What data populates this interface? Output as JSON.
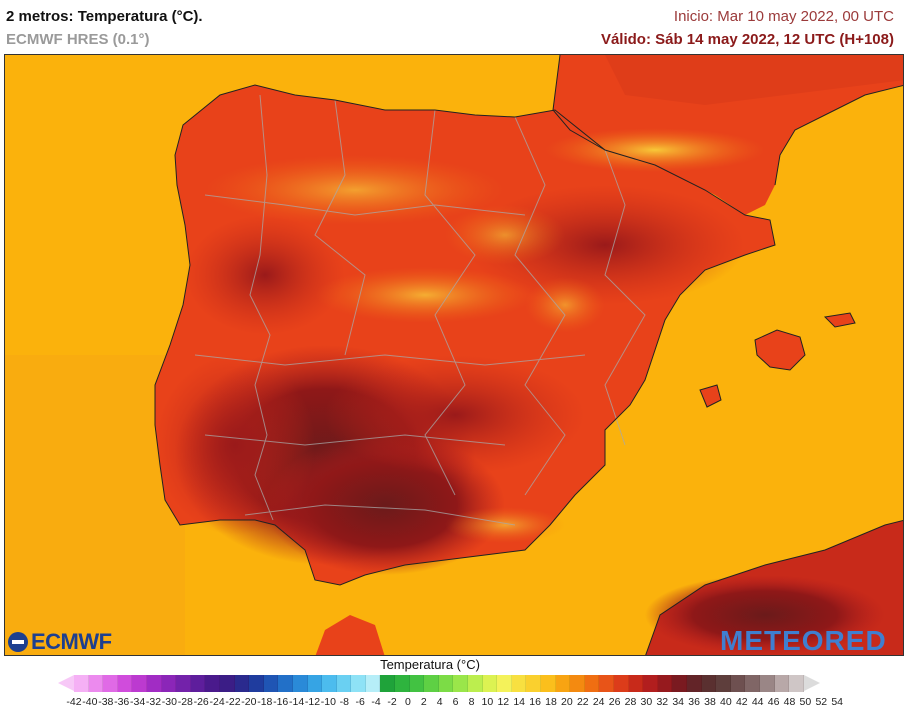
{
  "header": {
    "title": "2 metros: Temperatura (°C).",
    "model": "ECMWF HRES (0.1°)",
    "init": "Inicio: Mar 10 may 2022, 00 UTC",
    "valid": "Válido: Sáb 14 may 2022, 12 UTC (H+108)"
  },
  "logos": {
    "left": "ECMWF",
    "right": "METEORED"
  },
  "legend": {
    "title": "Temperatura (°C)",
    "ticks": [
      "-42",
      "-40",
      "-38",
      "-36",
      "-34",
      "-32",
      "-30",
      "-28",
      "-26",
      "-24",
      "-22",
      "-20",
      "-18",
      "-16",
      "-14",
      "-12",
      "-10",
      "-8",
      "-6",
      "-4",
      "-2",
      "0",
      "2",
      "4",
      "6",
      "8",
      "10",
      "12",
      "14",
      "16",
      "18",
      "20",
      "22",
      "24",
      "26",
      "28",
      "30",
      "32",
      "34",
      "36",
      "38",
      "40",
      "42",
      "44",
      "46",
      "48",
      "50",
      "52",
      "54"
    ],
    "colors": [
      "#f5b0f5",
      "#ec8aee",
      "#e06ae6",
      "#d04cdc",
      "#bc3ad0",
      "#a12cc4",
      "#8b26b8",
      "#7322aa",
      "#5e1e9c",
      "#4a1a8c",
      "#3b1d86",
      "#2a2a8e",
      "#1f3c9e",
      "#1f55b4",
      "#2270c8",
      "#2a8ad8",
      "#36a4e4",
      "#4cbcee",
      "#6ad0f2",
      "#8ee2f6",
      "#b6eef8",
      "#1fa33a",
      "#2eb43e",
      "#42c242",
      "#5ed044",
      "#7cdc46",
      "#9ae64a",
      "#bcee4e",
      "#dcf252",
      "#f4f25a",
      "#f8e040",
      "#fad02e",
      "#fbbf1c",
      "#f8a412",
      "#f48a10",
      "#f06e12",
      "#e85418",
      "#dc3c1a",
      "#c82a1a",
      "#b21e1e",
      "#961a1e",
      "#7a1a20",
      "#632428",
      "#5a3030",
      "#5e3e3c",
      "#6e5050",
      "#806666",
      "#9a8686",
      "#b8a8a8",
      "#cfc6c6"
    ]
  },
  "map": {
    "sea_color": "#fbb20c",
    "region": "Península Ibérica"
  }
}
